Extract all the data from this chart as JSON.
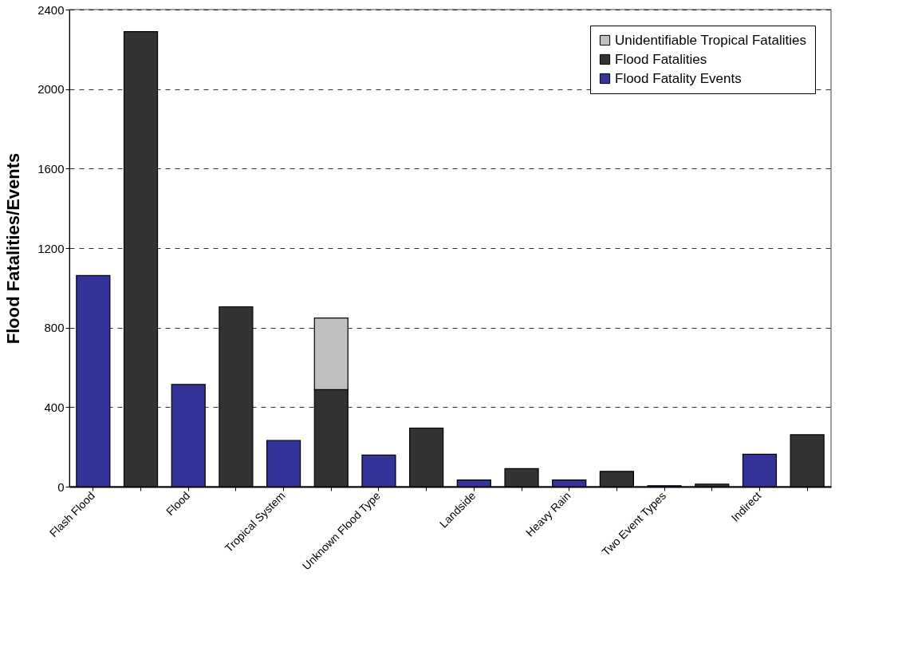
{
  "chart_data": {
    "type": "bar",
    "ylabel": "Flood Fatalities/Events",
    "categories": [
      "Flash Flood",
      null,
      "Flood",
      null,
      "Tropical System",
      null,
      "Unknown Flood Type",
      null,
      "Landside",
      null,
      "Heavy Rain",
      null,
      "Two Event Types",
      null,
      "Indirect",
      null
    ],
    "series": [
      {
        "name": "Flood Fatality Events",
        "color": "#333399",
        "values": [
          1062,
          null,
          514,
          null,
          232,
          null,
          159,
          null,
          34,
          null,
          34,
          null,
          5,
          null,
          163,
          null
        ]
      },
      {
        "name": "Flood Fatalities",
        "color": "#333333",
        "values": [
          null,
          2289,
          null,
          905,
          null,
          488,
          null,
          295,
          null,
          91,
          null,
          77,
          null,
          13,
          null,
          261
        ]
      },
      {
        "name": "Unidentifiable Tropical Fatalities",
        "color": "#c0c0c0",
        "values": [
          null,
          null,
          null,
          null,
          null,
          360,
          null,
          null,
          null,
          null,
          null,
          null,
          null,
          null,
          null,
          null
        ]
      }
    ],
    "stacked": true,
    "ylim": [
      0,
      2400
    ],
    "yticks": [
      0,
      400,
      800,
      1200,
      1600,
      2000,
      2400
    ],
    "grid": "y",
    "line_style": "dashed",
    "legend": "top right"
  }
}
